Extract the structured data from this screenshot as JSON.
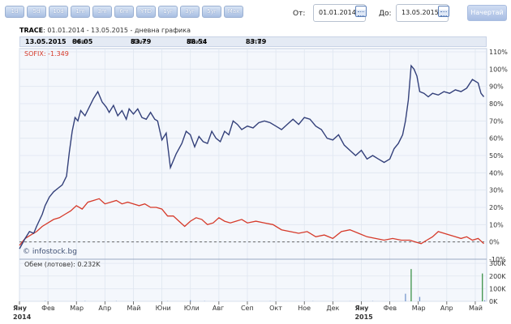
{
  "toolbar": {
    "ranges": [
      "1d",
      "5d",
      "10d",
      "1m",
      "3m",
      "6m",
      "YTD",
      "1yr",
      "3yr",
      "5yr",
      "Max"
    ],
    "from_label": "От:",
    "from_value": "01.01.2014",
    "to_label": "До:",
    "to_value": "13.05.2015",
    "submit_label": "Начертай"
  },
  "info": {
    "ticker": "TRACE",
    "subtitle": ": 01.01.2014 - 13.05.2015 - дневна графика"
  },
  "quote": {
    "date": "13.05.2015",
    "open_label": "Отв:",
    "open": "86.05",
    "min_label": "Мин:",
    "min": "83.79",
    "max_label": "Макс:",
    "max": "88.54",
    "close_label": "Затв:",
    "close": "83.79"
  },
  "chart_data": {
    "type": "line",
    "x_unit": "months since Jan 2014",
    "xlim": [
      0,
      16.4
    ],
    "ylim": [
      -10,
      110
    ],
    "y_ticks": [
      "-10%",
      "0%",
      "10%",
      "20%",
      "30%",
      "40%",
      "50%",
      "60%",
      "70%",
      "80%",
      "90%",
      "100%",
      "110%"
    ],
    "x_ticks": [
      {
        "x": 0,
        "label": "Яну",
        "year": "2014"
      },
      {
        "x": 1,
        "label": "Фев"
      },
      {
        "x": 2,
        "label": "Мар"
      },
      {
        "x": 3,
        "label": "Апр"
      },
      {
        "x": 4,
        "label": "Май"
      },
      {
        "x": 5,
        "label": "Юни"
      },
      {
        "x": 6,
        "label": "Юли"
      },
      {
        "x": 7,
        "label": "Авг"
      },
      {
        "x": 8,
        "label": "Сеп"
      },
      {
        "x": 9,
        "label": "Окт"
      },
      {
        "x": 10,
        "label": "Ное"
      },
      {
        "x": 11,
        "label": "Дек"
      },
      {
        "x": 12,
        "label": "Яну",
        "year": "2015"
      },
      {
        "x": 13,
        "label": "Фев"
      },
      {
        "x": 14,
        "label": "Мар"
      },
      {
        "x": 15,
        "label": "Апр"
      },
      {
        "x": 16,
        "label": "Май"
      }
    ],
    "series_label": "SOFIX: -1.349",
    "watermark": "© infostock.bg",
    "colors": {
      "trace": "#33407a",
      "sofix": "#d63a2a",
      "grid": "#dfe6f0",
      "plot_bg": "#f4f7fc"
    },
    "series": [
      {
        "name": "TRACE",
        "x": [
          0,
          0.2,
          0.35,
          0.5,
          0.6,
          0.8,
          0.9,
          1.05,
          1.2,
          1.35,
          1.5,
          1.65,
          1.75,
          1.85,
          1.95,
          2.05,
          2.15,
          2.3,
          2.45,
          2.6,
          2.75,
          2.9,
          3.05,
          3.15,
          3.3,
          3.45,
          3.6,
          3.75,
          3.85,
          4.0,
          4.15,
          4.3,
          4.45,
          4.6,
          4.75,
          4.85,
          5.0,
          5.15,
          5.3,
          5.5,
          5.7,
          5.85,
          6.0,
          6.15,
          6.3,
          6.45,
          6.6,
          6.75,
          6.9,
          7.05,
          7.2,
          7.35,
          7.5,
          7.65,
          7.8,
          8.0,
          8.2,
          8.4,
          8.6,
          8.8,
          9.0,
          9.2,
          9.4,
          9.6,
          9.8,
          10.0,
          10.2,
          10.4,
          10.6,
          10.8,
          11.0,
          11.2,
          11.4,
          11.6,
          11.8,
          12.0,
          12.2,
          12.4,
          12.6,
          12.8,
          13.0,
          13.15,
          13.3,
          13.45,
          13.55,
          13.65,
          13.75,
          13.85,
          13.95,
          14.05,
          14.2,
          14.35,
          14.5,
          14.7,
          14.9,
          15.1,
          15.3,
          15.5,
          15.7,
          15.9,
          16.1,
          16.2,
          16.3
        ],
        "y": [
          -4,
          2,
          6,
          5,
          9,
          16,
          21,
          26,
          29,
          31,
          33,
          38,
          52,
          64,
          72,
          70,
          76,
          73,
          78,
          83,
          87,
          81,
          78,
          75,
          79,
          73,
          76,
          71,
          77,
          74,
          77,
          72,
          71,
          75,
          71,
          70,
          59,
          63,
          43,
          51,
          57,
          64,
          62,
          55,
          61,
          58,
          57,
          64,
          60,
          58,
          64,
          62,
          70,
          68,
          65,
          67,
          66,
          69,
          70,
          69,
          67,
          65,
          68,
          71,
          68,
          72,
          71,
          67,
          65,
          60,
          59,
          62,
          56,
          53,
          50,
          53,
          48,
          50,
          48,
          46,
          48,
          54,
          57,
          62,
          70,
          82,
          102,
          100,
          96,
          87,
          86,
          84,
          86,
          85,
          87,
          86,
          88,
          87,
          89,
          94,
          92,
          86,
          84
        ]
      },
      {
        "name": "SOFIX",
        "x": [
          0,
          0.2,
          0.4,
          0.6,
          0.8,
          1.0,
          1.2,
          1.4,
          1.6,
          1.8,
          2.0,
          2.2,
          2.4,
          2.6,
          2.8,
          3.0,
          3.2,
          3.4,
          3.6,
          3.8,
          4.0,
          4.2,
          4.4,
          4.6,
          4.8,
          5.0,
          5.2,
          5.4,
          5.6,
          5.8,
          6.0,
          6.2,
          6.4,
          6.6,
          6.8,
          7.0,
          7.2,
          7.4,
          7.6,
          7.8,
          8.0,
          8.3,
          8.6,
          8.9,
          9.2,
          9.5,
          9.8,
          10.1,
          10.4,
          10.7,
          11.0,
          11.3,
          11.6,
          11.9,
          12.2,
          12.5,
          12.8,
          13.1,
          13.4,
          13.7,
          13.9,
          14.1,
          14.3,
          14.5,
          14.7,
          14.9,
          15.1,
          15.3,
          15.5,
          15.7,
          15.9,
          16.1,
          16.3
        ],
        "y": [
          -2,
          2,
          4,
          6,
          9,
          11,
          13,
          14,
          16,
          18,
          21,
          19,
          23,
          24,
          25,
          22,
          23,
          24,
          22,
          23,
          22,
          21,
          22,
          20,
          20,
          19,
          15,
          15,
          12,
          9,
          12,
          14,
          13,
          10,
          11,
          14,
          12,
          11,
          12,
          13,
          11,
          12,
          11,
          10,
          7,
          6,
          5,
          6,
          3,
          4,
          2,
          6,
          7,
          5,
          3,
          2,
          1,
          2,
          1,
          1,
          0,
          -1,
          1,
          3,
          6,
          5,
          4,
          3,
          2,
          3,
          1,
          2,
          -1
        ]
      }
    ],
    "volume": {
      "label": "Обем (лотове): 0.232K",
      "ylim": [
        0,
        320000
      ],
      "y_ticks": [
        "0K",
        "100K",
        "200K",
        "300K"
      ],
      "bars": [
        {
          "x": 0.9,
          "v": 3000
        },
        {
          "x": 2.3,
          "v": 2500
        },
        {
          "x": 3.4,
          "v": 2000
        },
        {
          "x": 5.2,
          "v": 1500
        },
        {
          "x": 6.0,
          "v": 9000
        },
        {
          "x": 6.5,
          "v": 2000
        },
        {
          "x": 8.8,
          "v": 1500
        },
        {
          "x": 10.3,
          "v": 1500
        },
        {
          "x": 11.6,
          "v": 1000
        },
        {
          "x": 12.4,
          "v": 2000
        },
        {
          "x": 13.55,
          "v": 60000
        },
        {
          "x": 13.75,
          "v": 255000
        },
        {
          "x": 14.05,
          "v": 35000
        },
        {
          "x": 16.25,
          "v": 220000
        },
        {
          "x": 16.33,
          "v": 8000
        }
      ]
    }
  }
}
